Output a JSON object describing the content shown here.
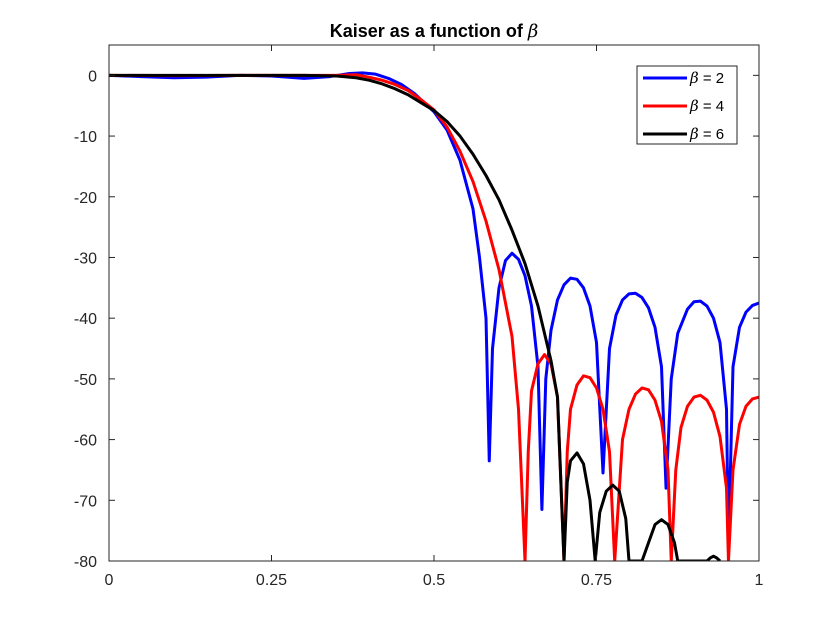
{
  "chart_data": {
    "type": "line",
    "title": "Kaiser as a function of",
    "title_symbol": "β",
    "xlabel": "",
    "ylabel": "",
    "xlim": [
      0,
      1
    ],
    "ylim": [
      -80,
      5
    ],
    "x_ticks": [
      0,
      0.25,
      0.5,
      0.75,
      1
    ],
    "x_tick_labels": [
      "0",
      "0.25",
      "0.5",
      "0.75",
      "1"
    ],
    "y_ticks": [
      0,
      -10,
      -20,
      -30,
      -40,
      -50,
      -60,
      -70,
      -80
    ],
    "y_tick_labels": [
      "0",
      "-10",
      "-20",
      "-30",
      "-40",
      "-50",
      "-60",
      "-70",
      "-80"
    ],
    "grid": false,
    "legend_position": "top-right",
    "series": [
      {
        "name": "β = 2",
        "symbol": "β",
        "label_rest": " = 2",
        "color": "#0000ff",
        "points": [
          [
            0,
            0
          ],
          [
            0.05,
            -0.2
          ],
          [
            0.1,
            -0.4
          ],
          [
            0.15,
            -0.3
          ],
          [
            0.2,
            0
          ],
          [
            0.25,
            -0.1
          ],
          [
            0.3,
            -0.5
          ],
          [
            0.34,
            -0.2
          ],
          [
            0.37,
            0.3
          ],
          [
            0.39,
            0.4
          ],
          [
            0.41,
            0.2
          ],
          [
            0.43,
            -0.5
          ],
          [
            0.45,
            -1.5
          ],
          [
            0.47,
            -3
          ],
          [
            0.49,
            -5
          ],
          [
            0.5,
            -6
          ],
          [
            0.52,
            -9
          ],
          [
            0.54,
            -14
          ],
          [
            0.56,
            -22
          ],
          [
            0.57,
            -30
          ],
          [
            0.58,
            -40
          ],
          [
            0.585,
            -63.5
          ],
          [
            0.59,
            -45
          ],
          [
            0.6,
            -35
          ],
          [
            0.61,
            -30.5
          ],
          [
            0.62,
            -29.3
          ],
          [
            0.63,
            -30.3
          ],
          [
            0.64,
            -33
          ],
          [
            0.65,
            -38
          ],
          [
            0.66,
            -48
          ],
          [
            0.666,
            -71.5
          ],
          [
            0.672,
            -50
          ],
          [
            0.68,
            -42
          ],
          [
            0.69,
            -37
          ],
          [
            0.7,
            -34.5
          ],
          [
            0.71,
            -33.4
          ],
          [
            0.72,
            -33.6
          ],
          [
            0.73,
            -35
          ],
          [
            0.74,
            -38
          ],
          [
            0.75,
            -44
          ],
          [
            0.76,
            -65.5
          ],
          [
            0.77,
            -45
          ],
          [
            0.78,
            -39.5
          ],
          [
            0.79,
            -37
          ],
          [
            0.8,
            -36
          ],
          [
            0.81,
            -35.9
          ],
          [
            0.82,
            -36.6
          ],
          [
            0.83,
            -38.3
          ],
          [
            0.84,
            -41.5
          ],
          [
            0.85,
            -48
          ],
          [
            0.857,
            -68
          ],
          [
            0.865,
            -50
          ],
          [
            0.875,
            -42.5
          ],
          [
            0.89,
            -38.5
          ],
          [
            0.9,
            -37.3
          ],
          [
            0.91,
            -37.2
          ],
          [
            0.92,
            -38
          ],
          [
            0.93,
            -40
          ],
          [
            0.94,
            -44
          ],
          [
            0.95,
            -55
          ],
          [
            0.953,
            -78
          ],
          [
            0.96,
            -48
          ],
          [
            0.97,
            -41.5
          ],
          [
            0.98,
            -39
          ],
          [
            0.99,
            -37.9
          ],
          [
            1.0,
            -37.5
          ]
        ]
      },
      {
        "name": "β = 4",
        "symbol": "β",
        "label_rest": " = 4",
        "color": "#ff0000",
        "points": [
          [
            0,
            0
          ],
          [
            0.1,
            -0.05
          ],
          [
            0.2,
            0
          ],
          [
            0.3,
            0
          ],
          [
            0.35,
            0
          ],
          [
            0.38,
            0.1
          ],
          [
            0.4,
            -0.3
          ],
          [
            0.42,
            -0.8
          ],
          [
            0.44,
            -1.5
          ],
          [
            0.46,
            -2.5
          ],
          [
            0.48,
            -4
          ],
          [
            0.5,
            -5.7
          ],
          [
            0.52,
            -8.5
          ],
          [
            0.54,
            -12.5
          ],
          [
            0.56,
            -17.5
          ],
          [
            0.58,
            -24
          ],
          [
            0.6,
            -32
          ],
          [
            0.62,
            -43
          ],
          [
            0.63,
            -55
          ],
          [
            0.64,
            -80
          ],
          [
            0.645,
            -62
          ],
          [
            0.65,
            -52
          ],
          [
            0.66,
            -47.5
          ],
          [
            0.67,
            -46
          ],
          [
            0.68,
            -47.5
          ],
          [
            0.69,
            -53
          ],
          [
            0.7,
            -80
          ],
          [
            0.705,
            -62
          ],
          [
            0.71,
            -55
          ],
          [
            0.72,
            -51
          ],
          [
            0.73,
            -49.5
          ],
          [
            0.74,
            -49.8
          ],
          [
            0.75,
            -51.5
          ],
          [
            0.76,
            -55
          ],
          [
            0.77,
            -62
          ],
          [
            0.778,
            -80
          ],
          [
            0.79,
            -60
          ],
          [
            0.8,
            -55
          ],
          [
            0.81,
            -52.5
          ],
          [
            0.82,
            -51.5
          ],
          [
            0.83,
            -51.8
          ],
          [
            0.84,
            -53.5
          ],
          [
            0.85,
            -57
          ],
          [
            0.86,
            -65
          ],
          [
            0.865,
            -80
          ],
          [
            0.872,
            -65
          ],
          [
            0.88,
            -58
          ],
          [
            0.89,
            -54.5
          ],
          [
            0.9,
            -53
          ],
          [
            0.91,
            -52.7
          ],
          [
            0.92,
            -53.5
          ],
          [
            0.93,
            -55.5
          ],
          [
            0.94,
            -59.5
          ],
          [
            0.95,
            -68
          ],
          [
            0.953,
            -80
          ],
          [
            0.96,
            -65
          ],
          [
            0.97,
            -57.5
          ],
          [
            0.98,
            -54.5
          ],
          [
            0.99,
            -53.3
          ],
          [
            1.0,
            -53
          ]
        ]
      },
      {
        "name": "β = 6",
        "symbol": "β",
        "label_rest": " = 6",
        "color": "#000000",
        "points": [
          [
            0,
            0
          ],
          [
            0.1,
            0
          ],
          [
            0.2,
            0
          ],
          [
            0.3,
            0
          ],
          [
            0.35,
            -0.1
          ],
          [
            0.38,
            -0.4
          ],
          [
            0.4,
            -0.8
          ],
          [
            0.42,
            -1.4
          ],
          [
            0.44,
            -2.2
          ],
          [
            0.46,
            -3.2
          ],
          [
            0.48,
            -4.5
          ],
          [
            0.5,
            -5.8
          ],
          [
            0.52,
            -7.6
          ],
          [
            0.54,
            -10
          ],
          [
            0.56,
            -13
          ],
          [
            0.58,
            -16.5
          ],
          [
            0.6,
            -20.5
          ],
          [
            0.62,
            -25.5
          ],
          [
            0.64,
            -31
          ],
          [
            0.66,
            -38
          ],
          [
            0.68,
            -47
          ],
          [
            0.69,
            -53
          ],
          [
            0.7,
            -80
          ],
          [
            0.705,
            -67
          ],
          [
            0.71,
            -63.5
          ],
          [
            0.72,
            -62.2
          ],
          [
            0.73,
            -64
          ],
          [
            0.74,
            -70
          ],
          [
            0.748,
            -80
          ],
          [
            0.755,
            -72
          ],
          [
            0.765,
            -68.5
          ],
          [
            0.775,
            -67.5
          ],
          [
            0.785,
            -68.5
          ],
          [
            0.795,
            -73
          ],
          [
            0.8,
            -80
          ],
          [
            0.82,
            -80
          ],
          [
            0.83,
            -77
          ],
          [
            0.84,
            -74
          ],
          [
            0.85,
            -73.2
          ],
          [
            0.86,
            -74
          ],
          [
            0.87,
            -77
          ],
          [
            0.875,
            -80
          ],
          [
            0.92,
            -80
          ],
          [
            0.925,
            -79.5
          ],
          [
            0.93,
            -79.2
          ],
          [
            0.935,
            -79.5
          ],
          [
            0.94,
            -80
          ]
        ]
      }
    ]
  }
}
